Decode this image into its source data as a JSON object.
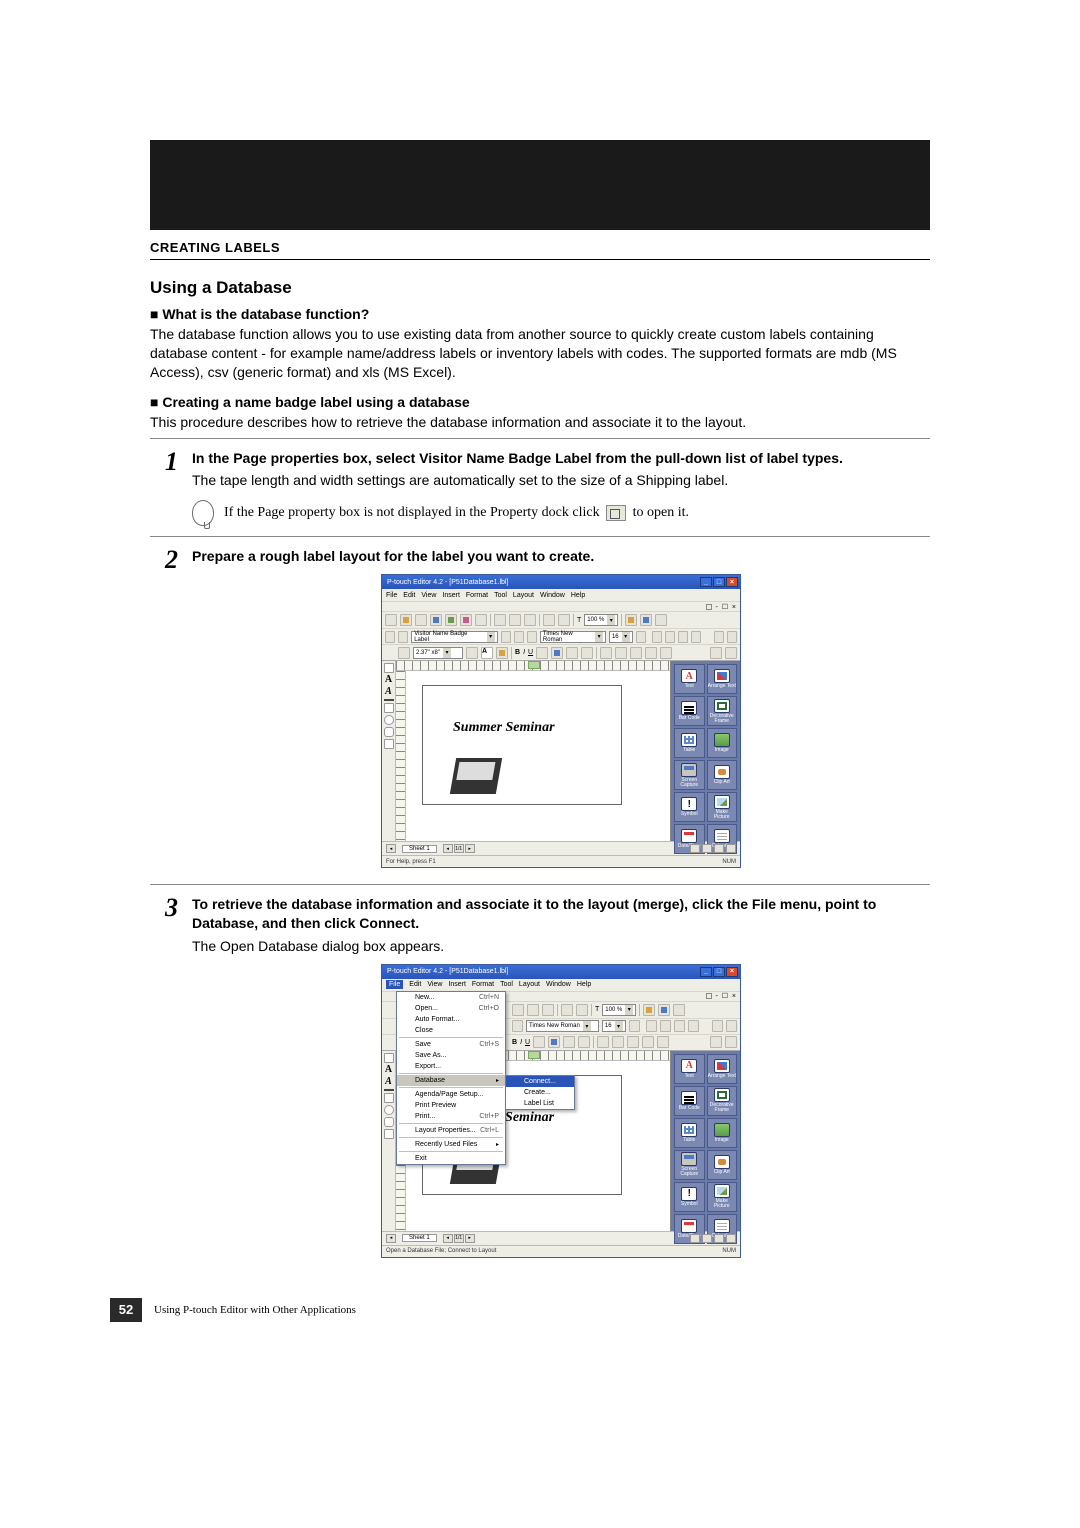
{
  "sectionHeader": "CREATING LABELS",
  "h3": "Using a Database",
  "sub1": "■ What is the database function?",
  "para1": "The database function allows you to use existing data from another source to quickly create custom labels containing database content - for example name/address labels or inventory labels with codes. The supported formats are mdb (MS Access), csv (generic format) and xls (MS Excel).",
  "sub2": "■ Creating a name badge label using a database",
  "para2": "This procedure describes how to retrieve the database information and associate it to the layout.",
  "step1": {
    "num": "1",
    "title": "In the Page properties box, select Visitor Name Badge Label from the pull-down list of label types.",
    "text": "The tape length and width settings are automatically set to the size of a Shipping label.",
    "tipPre": "If the Page property box is not displayed in the Property dock click ",
    "tipPost": " to open it."
  },
  "step2": {
    "num": "2",
    "title": "Prepare a rough label layout for the label you want to create."
  },
  "step3": {
    "num": "3",
    "title": "To retrieve the database information and associate it to the layout (merge), click the File menu, point to Database, and then click Connect.",
    "text": "The Open Database dialog box appears."
  },
  "shot": {
    "title": "P-touch Editor 4.2 - [P51Database1.lbl]",
    "menus": [
      "File",
      "Edit",
      "View",
      "Insert",
      "Format",
      "Tool",
      "Layout",
      "Window",
      "Help"
    ],
    "combo1": "Visitor Name Badge Label",
    "font": "Times New Roman",
    "fontsize": "16",
    "zoom": "100 %",
    "ruler": "2.37\" x8\"",
    "labelText": "Summer Seminar",
    "labelText2": "mer Seminar",
    "palette": [
      {
        "cls": "text",
        "lbl": "Text"
      },
      {
        "cls": "af",
        "lbl": "Arrange Text"
      },
      {
        "cls": "bar",
        "lbl": "Bar Code"
      },
      {
        "cls": "frame",
        "lbl": "Decorative Frame"
      },
      {
        "cls": "grid",
        "lbl": "Table"
      },
      {
        "cls": "img",
        "lbl": "Image"
      },
      {
        "cls": "scr",
        "lbl": "Screen Capture"
      },
      {
        "cls": "clip",
        "lbl": "Clip Art"
      },
      {
        "cls": "sym",
        "lbl": "Symbol"
      },
      {
        "cls": "pic",
        "lbl": "Make Picture"
      },
      {
        "cls": "date",
        "lbl": "Date/Time"
      },
      {
        "cls": "cal",
        "lbl": "Calendar"
      }
    ],
    "sheet": "Sheet 1",
    "sheetPage": "1/1",
    "help": "For Help, press F1",
    "help2": "Open a Database File; Connect to Layout",
    "num": "NUM",
    "fileMenu": [
      {
        "l": "New...",
        "r": "Ctrl+N"
      },
      {
        "l": "Open...",
        "r": "Ctrl+O"
      },
      {
        "l": "Auto Format..."
      },
      {
        "l": "Close"
      },
      {
        "sep": true
      },
      {
        "l": "Save",
        "r": "Ctrl+S"
      },
      {
        "l": "Save As..."
      },
      {
        "l": "Export..."
      },
      {
        "sep": true
      },
      {
        "l": "Database",
        "sel": true,
        "arrow": true
      },
      {
        "sep": true
      },
      {
        "l": "Agenda/Page Setup..."
      },
      {
        "l": "Print Preview"
      },
      {
        "l": "Print...",
        "r": "Ctrl+P"
      },
      {
        "sep": true
      },
      {
        "l": "Layout Properties...",
        "r": "Ctrl+L"
      },
      {
        "sep": true
      },
      {
        "l": "Recently Used Files",
        "arrow": true
      },
      {
        "sep": true
      },
      {
        "l": "Exit"
      }
    ],
    "dbSub": [
      {
        "l": "Connect...",
        "sel": true
      },
      {
        "l": "Create..."
      },
      {
        "l": "Label List"
      }
    ]
  },
  "pageNum": "52",
  "footer": "Using P-touch Editor with Other Applications"
}
